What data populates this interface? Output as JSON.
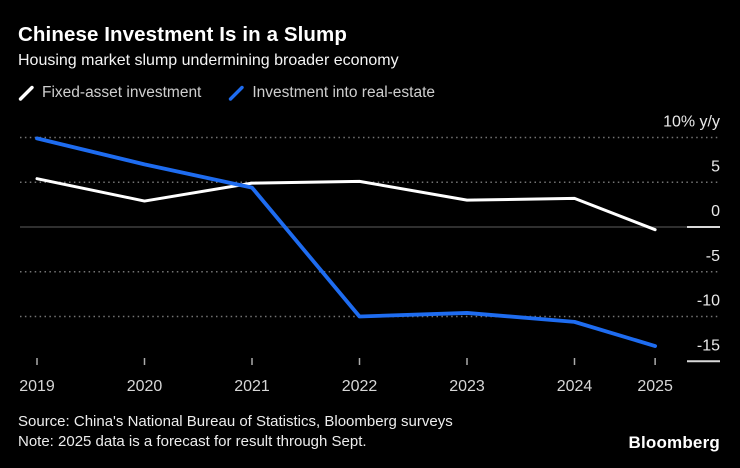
{
  "header": {
    "title": "Chinese Investment Is in a Slump",
    "subtitle": "Housing market slump undermining broader economy"
  },
  "footer": {
    "source": "Source: China's National Bureau of Statistics, Bloomberg surveys",
    "note": "Note: 2025 data is a forecast for result through Sept.",
    "logo": "Bloomberg"
  },
  "chart_data": {
    "type": "line",
    "title": "Chinese Investment Is in a Slump",
    "subtitle": "Housing market slump undermining broader economy",
    "unit_label": "% y/y",
    "categories": [
      "2019",
      "2020",
      "2021",
      "2022",
      "2023",
      "2024",
      "2025"
    ],
    "x_offsets_years": [
      0,
      1,
      2,
      3,
      4,
      5,
      5.75
    ],
    "series": [
      {
        "name": "Fixed-asset investment",
        "color": "#ffffff",
        "values": [
          5.4,
          2.9,
          4.9,
          5.1,
          3.0,
          3.2,
          -0.3
        ]
      },
      {
        "name": "Investment into real-estate",
        "color": "#1e6cf0",
        "values": [
          9.9,
          7.0,
          4.4,
          -10.0,
          -9.6,
          -10.6,
          -13.3
        ]
      }
    ],
    "yticks": [
      {
        "value": 10,
        "label": "10% y/y",
        "line": "dotted",
        "stub": false
      },
      {
        "value": 5,
        "label": "5",
        "line": "dotted",
        "stub": false
      },
      {
        "value": 0,
        "label": "0",
        "line": "solid",
        "stub": true
      },
      {
        "value": -5,
        "label": "-5",
        "line": "dotted",
        "stub": false
      },
      {
        "value": -10,
        "label": "-10",
        "line": "dotted",
        "stub": false
      },
      {
        "value": -15,
        "label": "-15",
        "line": "none",
        "stub": true
      }
    ],
    "ylim": [
      -15,
      10
    ],
    "grid": "horizontal-dotted",
    "legend_position": "top-left",
    "note_2025": "forecast through Sept."
  }
}
